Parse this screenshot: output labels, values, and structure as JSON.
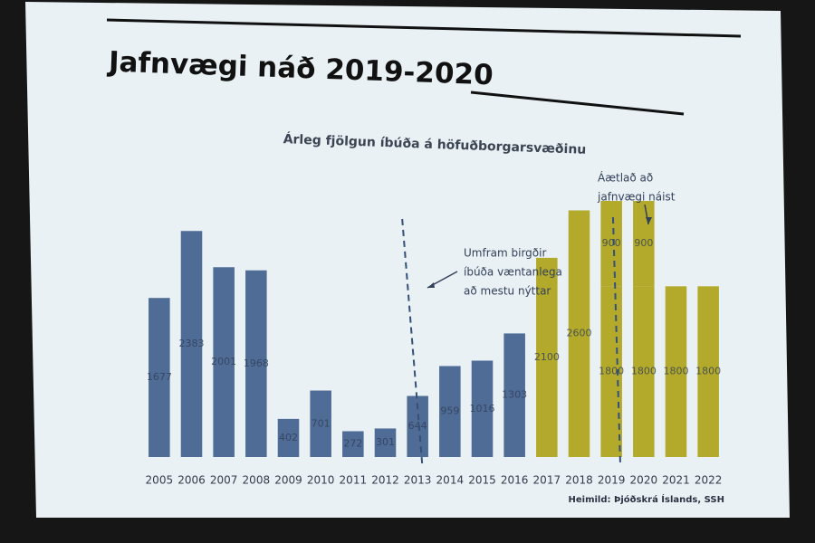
{
  "chart_data": {
    "type": "bar",
    "stacked": true,
    "title": "Jafnvægi náð 2019-2020",
    "subtitle": "Árleg fjölgun íbúða á höfuðborgarsvæðinu",
    "categories": [
      "2005",
      "2006",
      "2007",
      "2008",
      "2009",
      "2010",
      "2011",
      "2012",
      "2013",
      "2014",
      "2015",
      "2016",
      "2017",
      "2018",
      "2019",
      "2020",
      "2021",
      "2022"
    ],
    "series": [
      {
        "color": "#4f6c96",
        "values": [
          1677,
          2383,
          2001,
          1968,
          402,
          701,
          272,
          301,
          644,
          959,
          1016,
          1303,
          null,
          null,
          null,
          null,
          null,
          null
        ]
      },
      {
        "color": "#b3aa2c",
        "values": [
          null,
          null,
          null,
          null,
          null,
          null,
          null,
          null,
          null,
          null,
          null,
          null,
          2100,
          2600,
          1800,
          1800,
          1800,
          1800
        ]
      },
      {
        "color": "#b3aa2c",
        "values": [
          null,
          null,
          null,
          null,
          null,
          null,
          null,
          null,
          null,
          null,
          null,
          null,
          null,
          null,
          900,
          900,
          null,
          null
        ]
      }
    ],
    "annotations": [
      {
        "lines": [
          "Umfram birgðir",
          "íbúða væntanlega",
          "að mestu nýttar"
        ]
      },
      {
        "lines": [
          "Áætlað að",
          "jafnvægi náist"
        ]
      }
    ],
    "source": "Heimild: Þjóðskrá Íslands, SSH"
  }
}
